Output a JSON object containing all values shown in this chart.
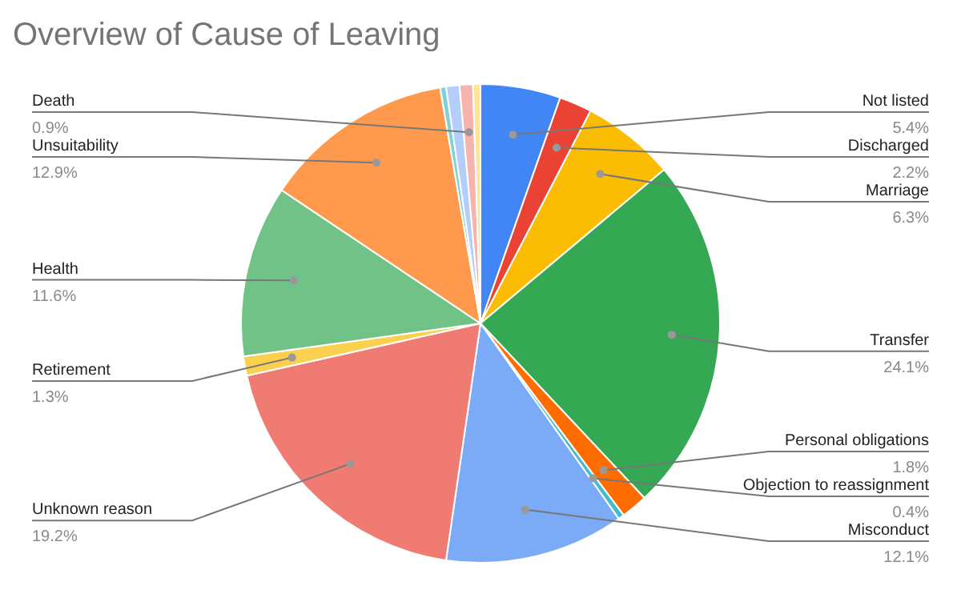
{
  "chart_data": {
    "type": "pie",
    "title": "Overview of Cause of Leaving",
    "categories": [
      "Not listed",
      "Discharged",
      "Marriage",
      "Transfer",
      "Personal obligations",
      "Objection to reassignment",
      "Misconduct",
      "Unknown reason",
      "Retirement",
      "Health",
      "Unsuitability",
      null,
      null,
      "Death",
      null
    ],
    "values": [
      5.4,
      2.2,
      6.3,
      24.1,
      1.8,
      0.4,
      12.1,
      19.2,
      1.3,
      11.6,
      12.9,
      0.4,
      0.9,
      0.9,
      0.5
    ],
    "value_labels": [
      "5.4%",
      "2.2%",
      "6.3%",
      "24.1%",
      "1.8%",
      "0.4%",
      "12.1%",
      "19.2%",
      "1.3%",
      "11.6%",
      "12.9%",
      null,
      null,
      "0.9%",
      null
    ],
    "colors": [
      "#4285f4",
      "#ea4335",
      "#fbbc04",
      "#34a853",
      "#ff6d01",
      "#46bdc6",
      "#7baaf7",
      "#f07b72",
      "#fcd04f",
      "#71c287",
      "#ff994d",
      "#7ed1d7",
      "#b3cefb",
      "#f7b4ae",
      "#fde49b"
    ],
    "legend": false
  }
}
